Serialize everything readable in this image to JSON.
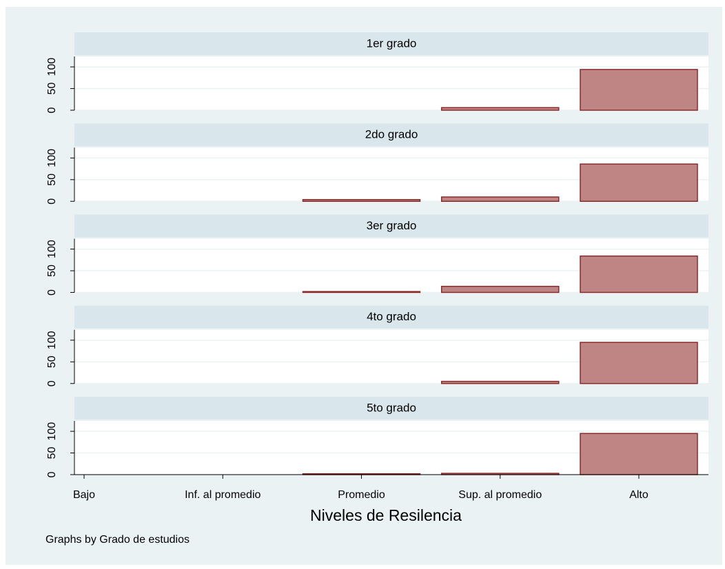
{
  "chart_data": {
    "type": "bar",
    "categories": [
      "Bajo",
      "Inf. al promedio",
      "Promedio",
      "Sup. al promedio",
      "Alto"
    ],
    "facets": [
      {
        "title": "1er grado",
        "values": [
          0,
          0,
          0,
          6,
          94
        ]
      },
      {
        "title": "2do grado",
        "values": [
          0,
          0,
          4,
          10,
          86
        ]
      },
      {
        "title": "3er grado",
        "values": [
          0,
          0,
          2,
          14,
          84
        ]
      },
      {
        "title": "4to grado",
        "values": [
          0,
          0,
          0,
          5,
          95
        ]
      },
      {
        "title": "5to grado",
        "values": [
          0,
          0,
          2,
          3,
          95
        ]
      }
    ],
    "ylim": [
      0,
      124
    ],
    "yticks": [
      0,
      50,
      100
    ],
    "grid": true,
    "color": "#bf8585",
    "edge_color": "#8c2a2a",
    "xlabel": "Niveles de Resilencia",
    "note": "Graphs by Grado de estudios"
  }
}
